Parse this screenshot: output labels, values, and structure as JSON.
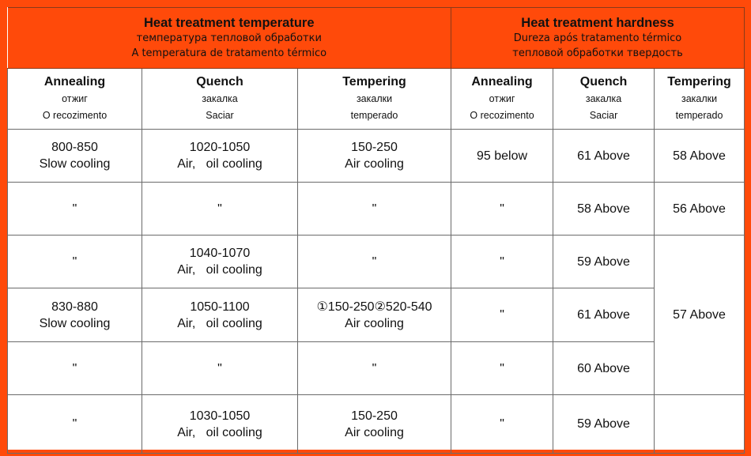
{
  "header": {
    "temp_title": "Heat treatment temperature",
    "temp_ru": "температура тепловой обработки",
    "temp_pt": "A temperatura de tratamento térmico",
    "hard_title": "Heat treatment hardness",
    "hard_pt": "Dureza após tratamento térmico",
    "hard_ru": "тепловой обработки твердость"
  },
  "columns": [
    {
      "en": "Annealing",
      "ru": "отжиг",
      "pt": "O recozimento"
    },
    {
      "en": "Quench",
      "ru": "закалка",
      "pt": "Saciar"
    },
    {
      "en": "Tempering",
      "ru": "закалки",
      "pt": "temperado"
    },
    {
      "en": "Annealing",
      "ru": "отжиг",
      "pt": "O recozimento"
    },
    {
      "en": "Quench",
      "ru": "закалка",
      "pt": "Saciar"
    },
    {
      "en": "Tempering",
      "ru": "закалки",
      "pt": "temperado"
    }
  ],
  "rows": [
    {
      "annealing": [
        "800-850",
        "Slow cooling"
      ],
      "quench": [
        "1020-1050",
        "Air,   oil cooling"
      ],
      "tempering": [
        "150-250",
        "Air cooling"
      ],
      "h_annealing": "95 below",
      "h_quench": "61 Above",
      "h_tempering": "58 Above"
    },
    {
      "annealing": [
        "\""
      ],
      "quench": [
        "\""
      ],
      "tempering": [
        "\""
      ],
      "h_annealing": "\"",
      "h_quench": "58 Above",
      "h_tempering": "56 Above"
    },
    {
      "annealing": [
        "\""
      ],
      "quench": [
        "1040-1070",
        "Air,   oil cooling"
      ],
      "tempering": [
        "\""
      ],
      "h_annealing": "\"",
      "h_quench": "59 Above"
    },
    {
      "annealing": [
        "830-880",
        "Slow cooling"
      ],
      "quench": [
        "1050-1100",
        "Air,   oil cooling"
      ],
      "tempering": [
        "①150-250②520-540",
        "Air cooling"
      ],
      "h_annealing": "\"",
      "h_quench": "61 Above"
    },
    {
      "annealing": [
        "\""
      ],
      "quench": [
        "\""
      ],
      "tempering": [
        "\""
      ],
      "h_annealing": "\"",
      "h_quench": "60 Above"
    },
    {
      "annealing": [
        "\""
      ],
      "quench": [
        "1030-1050",
        "Air,   oil cooling"
      ],
      "tempering": [
        "150-250",
        "Air cooling"
      ],
      "h_annealing": "\"",
      "h_quench": "59 Above",
      "h_tempering": ""
    }
  ],
  "merged_tempering": "57 Above"
}
